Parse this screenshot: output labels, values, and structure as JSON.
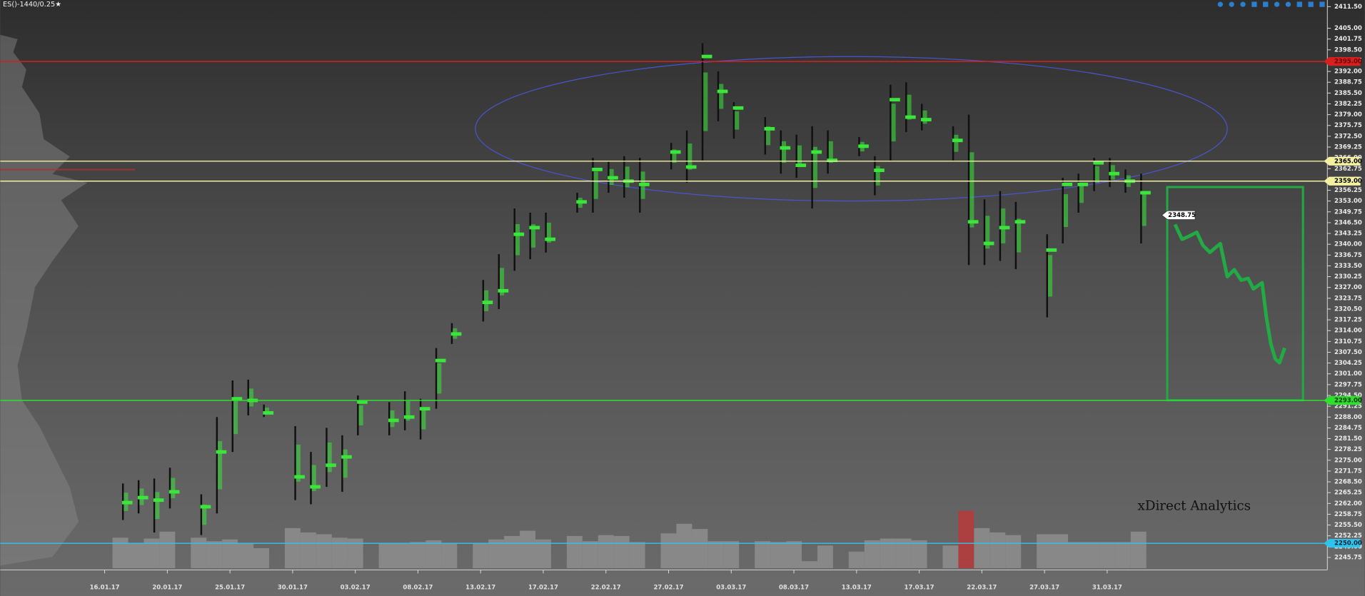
{
  "chart_data": {
    "type": "market_profile",
    "title": "ES()-1440/0.25★",
    "watermark": "xDirect Analytics",
    "categories": [
      "16.01.17",
      null,
      null,
      null,
      "20.01.17",
      null,
      null,
      null,
      "25.01.17",
      null,
      null,
      null,
      "30.01.17",
      null,
      null,
      null,
      "03.02.17",
      null,
      null,
      null,
      "08.02.17",
      null,
      null,
      null,
      "13.02.17",
      null,
      null,
      null,
      "17.02.17",
      null,
      null,
      null,
      "22.02.17",
      null,
      null,
      null,
      "27.02.17",
      null,
      null,
      null,
      "03.03.17",
      null,
      null,
      null,
      "08.03.17",
      null,
      null,
      null,
      "13.03.17",
      null,
      null,
      null,
      "17.03.17",
      null,
      null,
      null,
      "22.03.17",
      null,
      null,
      null,
      "27.03.17",
      null,
      null,
      null,
      "31.03.17",
      null,
      null
    ],
    "high": [
      null,
      2268,
      2269,
      2269.5,
      2272.75,
      null,
      2264.75,
      2288,
      2299,
      2299.25,
      2291.75,
      null,
      2285.25,
      2277.5,
      2284.75,
      2282.5,
      2294.5,
      null,
      2292.5,
      2295.75,
      2293.5,
      2308.75,
      2316.25,
      null,
      2329.25,
      2337,
      2350.75,
      2349.5,
      2349.5,
      null,
      2355.5,
      2366,
      2365,
      2366.5,
      2366,
      null,
      2370.5,
      2374.25,
      2400.5,
      2392,
      2382.75,
      null,
      2378.25,
      2374.25,
      2373,
      2375.5,
      2374.25,
      null,
      2372.25,
      2366.5,
      2388,
      2388.75,
      2382.25,
      null,
      2375.5,
      2379,
      2353.5,
      2356,
      2352.75,
      null,
      2343,
      2360,
      2361.25,
      2366,
      2366,
      2362.5,
      2361.25
    ],
    "low": [
      null,
      2257,
      2259,
      2253.25,
      2260.5,
      null,
      2252.5,
      2259,
      2277.5,
      2288.5,
      2288,
      null,
      2263,
      2261.75,
      2267,
      2265.5,
      2282.5,
      null,
      2282.5,
      2284,
      2281.25,
      2290.5,
      2310,
      null,
      2316.75,
      2320.5,
      2332,
      2335.5,
      2337.5,
      null,
      2349.5,
      2349.5,
      2355.5,
      2354,
      2349.5,
      null,
      2362.5,
      2358.5,
      2365.25,
      2377,
      2371.75,
      null,
      2367,
      2361.25,
      2360,
      2350.75,
      2361.25,
      null,
      2366.5,
      2354.75,
      2365.25,
      2373.75,
      2374.25,
      null,
      2365.25,
      2333.75,
      2333.75,
      2335,
      2332.5,
      null,
      2318,
      2340.25,
      2349.5,
      2356,
      2357.25,
      2355.5,
      2340.25
    ],
    "poc": [
      null,
      2262.25,
      2263.75,
      2263,
      2265.5,
      null,
      2261,
      2277.5,
      2293.5,
      2293,
      2289.25,
      null,
      2270,
      2267,
      2273.5,
      2276,
      2292.5,
      null,
      2287,
      2288,
      2290.5,
      2305,
      2313,
      null,
      2322.5,
      2326,
      2343,
      2345,
      2341.5,
      null,
      2352.75,
      2362.5,
      2360,
      2359,
      2358,
      null,
      2367.75,
      2363.25,
      2396.5,
      2386,
      2381,
      null,
      2374.75,
      2369,
      2363.75,
      2367.75,
      2365.25,
      null,
      2369.5,
      2362.25,
      2383.5,
      2378.25,
      2377.5,
      null,
      2371.25,
      2346.75,
      2340.25,
      2345,
      2346.75,
      null,
      2338.25,
      2358,
      2358,
      2364.5,
      2361.25,
      2359,
      2355.5
    ],
    "volume": [
      null,
      35,
      29,
      34,
      42,
      null,
      35,
      31,
      33,
      28,
      23,
      null,
      46,
      41,
      39,
      35,
      34,
      null,
      28,
      28,
      30,
      32,
      28,
      null,
      28,
      33,
      37,
      43,
      33,
      null,
      37,
      31,
      38,
      37,
      30,
      null,
      40,
      51,
      45,
      31,
      31,
      null,
      31,
      30,
      31,
      8,
      26,
      null,
      19,
      32,
      34,
      34,
      32,
      null,
      26,
      66,
      46,
      41,
      38,
      null,
      39,
      39,
      30,
      30,
      30,
      30,
      42
    ],
    "volume_colors": [
      null,
      "#8e8e8e",
      "#8e8e8e",
      "#8e8e8e",
      "#8e8e8e",
      null,
      "#8e8e8e",
      "#8e8e8e",
      "#8e8e8e",
      "#8e8e8e",
      "#8e8e8e",
      null,
      "#8e8e8e",
      "#8e8e8e",
      "#8e8e8e",
      "#8e8e8e",
      "#8e8e8e",
      null,
      "#8e8e8e",
      "#8e8e8e",
      "#8e8e8e",
      "#8e8e8e",
      "#8e8e8e",
      null,
      "#8e8e8e",
      "#8e8e8e",
      "#8e8e8e",
      "#8e8e8e",
      "#8e8e8e",
      null,
      "#8e8e8e",
      "#8e8e8e",
      "#8e8e8e",
      "#8e8e8e",
      "#8e8e8e",
      null,
      "#8e8e8e",
      "#8e8e8e",
      "#8e8e8e",
      "#8e8e8e",
      "#8e8e8e",
      null,
      "#8e8e8e",
      "#8e8e8e",
      "#8e8e8e",
      "#8e8e8e",
      "#8e8e8e",
      null,
      "#8e8e8e",
      "#8e8e8e",
      "#8e8e8e",
      "#8e8e8e",
      "#8e8e8e",
      null,
      "#8e8e8e",
      "#b83a3a",
      "#8e8e8e",
      "#8e8e8e",
      "#8e8e8e",
      null,
      "#8e8e8e",
      "#8e8e8e",
      "#8e8e8e",
      "#8e8e8e",
      "#8e8e8e",
      "#8e8e8e",
      "#8e8e8e"
    ],
    "vlim": [
      0,
      100
    ],
    "profile_color": "#39e639",
    "wick_color": "#101010",
    "ylim": [
      2242,
      2413.5
    ],
    "yticks": [
      {
        "value": 2411.5,
        "label": "2411.50"
      },
      {
        "value": 2405,
        "label": "2405.00"
      },
      {
        "value": 2401.75,
        "label": "2401.75"
      },
      {
        "value": 2398.5,
        "label": "2398.50"
      },
      {
        "value": 2395.25,
        "label": "2395.25"
      },
      {
        "value": 2392,
        "label": "2392.00"
      },
      {
        "value": 2388.75,
        "label": "2388.75"
      },
      {
        "value": 2385.5,
        "label": "2385.50"
      },
      {
        "value": 2382.25,
        "label": "2382.25"
      },
      {
        "value": 2379,
        "label": "2379.00"
      },
      {
        "value": 2375.75,
        "label": "2375.75"
      },
      {
        "value": 2372.5,
        "label": "2372.50"
      },
      {
        "value": 2369.25,
        "label": "2369.25"
      },
      {
        "value": 2366,
        "label": "2366.00"
      },
      {
        "value": 2362.75,
        "label": "2362.75"
      },
      {
        "value": 2359.5,
        "label": "2359.50"
      },
      {
        "value": 2356.25,
        "label": "2356.25"
      },
      {
        "value": 2353,
        "label": "2353.00"
      },
      {
        "value": 2349.75,
        "label": "2349.75"
      },
      {
        "value": 2346.5,
        "label": "2346.50"
      },
      {
        "value": 2343.25,
        "label": "2343.25"
      },
      {
        "value": 2340,
        "label": "2340.00"
      },
      {
        "value": 2336.75,
        "label": "2336.75"
      },
      {
        "value": 2333.5,
        "label": "2333.50"
      },
      {
        "value": 2330.25,
        "label": "2330.25"
      },
      {
        "value": 2327,
        "label": "2327.00"
      },
      {
        "value": 2323.75,
        "label": "2323.75"
      },
      {
        "value": 2320.5,
        "label": "2320.50"
      },
      {
        "value": 2317.25,
        "label": "2317.25"
      },
      {
        "value": 2314,
        "label": "2314.00"
      },
      {
        "value": 2310.75,
        "label": "2310.75"
      },
      {
        "value": 2307.5,
        "label": "2307.50"
      },
      {
        "value": 2304.25,
        "label": "2304.25"
      },
      {
        "value": 2301,
        "label": "2301.00"
      },
      {
        "value": 2297.75,
        "label": "2297.75"
      },
      {
        "value": 2294.5,
        "label": "2294.50"
      },
      {
        "value": 2291.25,
        "label": "2291.25"
      },
      {
        "value": 2288,
        "label": "2288.00"
      },
      {
        "value": 2284.75,
        "label": "2284.75"
      },
      {
        "value": 2281.5,
        "label": "2281.50"
      },
      {
        "value": 2278.25,
        "label": "2278.25"
      },
      {
        "value": 2275,
        "label": "2275.00"
      },
      {
        "value": 2271.75,
        "label": "2271.75"
      },
      {
        "value": 2268.5,
        "label": "2268.50"
      },
      {
        "value": 2265.25,
        "label": "2265.25"
      },
      {
        "value": 2262,
        "label": "2262.00"
      },
      {
        "value": 2258.75,
        "label": "2258.75"
      },
      {
        "value": 2255.5,
        "label": "2255.50"
      },
      {
        "value": 2252.25,
        "label": "2252.25"
      },
      {
        "value": 2249,
        "label": "2249.00"
      },
      {
        "value": 2245.75,
        "label": "2245.75"
      }
    ],
    "levels": [
      {
        "value": 2395,
        "label": "2395.00",
        "color": "#d61f1f",
        "text_color": "#6a0000"
      },
      {
        "value": 2365,
        "label": "2365.00",
        "color": "#f3f0a0",
        "text_color": "#000000"
      },
      {
        "value": 2359,
        "label": "2359.00",
        "color": "#f3f0a0",
        "text_color": "#000000"
      },
      {
        "value": 2293,
        "label": "2293.00",
        "color": "#2ee02e",
        "text_color": "#003300"
      },
      {
        "value": 2250,
        "label": "2250.00",
        "color": "#2fc4ee",
        "text_color": "#002233"
      }
    ],
    "last_price": {
      "value": 2348.75,
      "label": "2348.75"
    }
  }
}
